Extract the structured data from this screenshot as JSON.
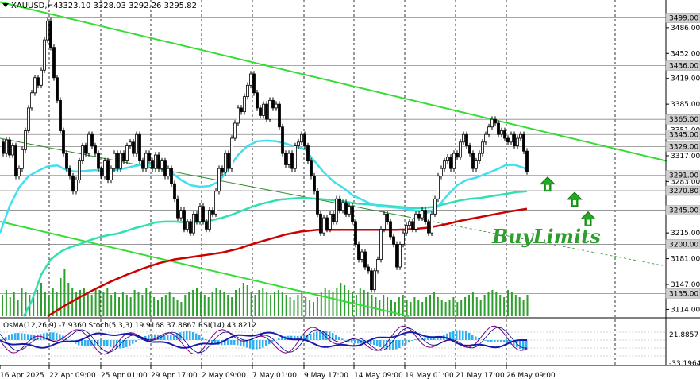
{
  "header": {
    "symbol": "XAUUSD,H4",
    "ohlc": "3323.10 3328.03 3292.26 3295.82"
  },
  "indicators_label": "OsMA(12,26,9) -7.9360  Stoch(5,3,3) 19.9168 37.8867  RSI(14) 43.8212",
  "annotation": "BuyLimits",
  "colors": {
    "candles": "#000000",
    "ma_fast": "#40e0f0",
    "ma_mid": "#30e0b0",
    "ma_slow": "#cc0000",
    "channel": "#33dd33",
    "arrow": "#22aa22",
    "osma": "#30b0f0",
    "stoch_main": "#800080",
    "stoch_signal": "#000080",
    "rsi": "#1a1aaa",
    "volume": "#2e9e2e"
  },
  "chart_data": {
    "type": "candlestick",
    "y_ticks": [
      "3486.00",
      "3452.00",
      "3419.00",
      "3385.00",
      "3351.00",
      "3317.00",
      "3283.00",
      "3215.00",
      "3181.00",
      "3147.00",
      "3114.00"
    ],
    "y_tick_values": [
      3486,
      3452,
      3419,
      3385,
      3351,
      3317,
      3283,
      3215,
      3181,
      3147,
      3114
    ],
    "price_badges": [
      "3499.00",
      "3436.00",
      "3365.00",
      "3345.00",
      "3329.00",
      "3291.00",
      "3270.80",
      "3245.00",
      "3200.00",
      "3135.00"
    ],
    "price_badge_values": [
      3499,
      3436,
      3365,
      3345,
      3329,
      3291,
      3270.8,
      3245,
      3200,
      3135
    ],
    "x_ticks": [
      "16 Apr 2025",
      "22 Apr 09:00",
      "25 Apr 01:00",
      "29 Apr 17:00",
      "2 May 09:00",
      "7 May 01:00",
      "9 May 17:00",
      "14 May 09:00",
      "19 May 01:00",
      "21 May 17:00",
      "26 May 09:00"
    ],
    "y_range": [
      3105,
      3510
    ],
    "price_path": [
      [
        0,
        3335
      ],
      [
        4,
        3320
      ],
      [
        8,
        3338
      ],
      [
        12,
        3318
      ],
      [
        16,
        3330
      ],
      [
        20,
        3290
      ],
      [
        24,
        3300
      ],
      [
        28,
        3325
      ],
      [
        32,
        3350
      ],
      [
        36,
        3380
      ],
      [
        40,
        3400
      ],
      [
        44,
        3420
      ],
      [
        48,
        3410
      ],
      [
        52,
        3430
      ],
      [
        56,
        3470
      ],
      [
        60,
        3495
      ],
      [
        64,
        3460
      ],
      [
        68,
        3420
      ],
      [
        72,
        3390
      ],
      [
        76,
        3350
      ],
      [
        80,
        3320
      ],
      [
        84,
        3300
      ],
      [
        88,
        3290
      ],
      [
        92,
        3270
      ],
      [
        96,
        3285
      ],
      [
        100,
        3310
      ],
      [
        104,
        3330
      ],
      [
        108,
        3320
      ],
      [
        112,
        3345
      ],
      [
        116,
        3330
      ],
      [
        120,
        3320
      ],
      [
        124,
        3300
      ],
      [
        128,
        3290
      ],
      [
        132,
        3310
      ],
      [
        136,
        3285
      ],
      [
        140,
        3300
      ],
      [
        144,
        3320
      ],
      [
        148,
        3300
      ],
      [
        152,
        3320
      ],
      [
        156,
        3310
      ],
      [
        160,
        3330
      ],
      [
        164,
        3335
      ],
      [
        168,
        3320
      ],
      [
        172,
        3345
      ],
      [
        176,
        3310
      ],
      [
        180,
        3300
      ],
      [
        184,
        3320
      ],
      [
        188,
        3310
      ],
      [
        192,
        3300
      ],
      [
        196,
        3318
      ],
      [
        200,
        3300
      ],
      [
        204,
        3310
      ],
      [
        208,
        3290
      ],
      [
        212,
        3300
      ],
      [
        216,
        3280
      ],
      [
        220,
        3260
      ],
      [
        224,
        3235
      ],
      [
        228,
        3245
      ],
      [
        232,
        3220
      ],
      [
        236,
        3230
      ],
      [
        240,
        3215
      ],
      [
        244,
        3240
      ],
      [
        248,
        3230
      ],
      [
        252,
        3250
      ],
      [
        256,
        3230
      ],
      [
        260,
        3220
      ],
      [
        264,
        3245
      ],
      [
        268,
        3240
      ],
      [
        272,
        3270
      ],
      [
        276,
        3300
      ],
      [
        280,
        3295
      ],
      [
        284,
        3320
      ],
      [
        288,
        3300
      ],
      [
        292,
        3340
      ],
      [
        296,
        3360
      ],
      [
        300,
        3380
      ],
      [
        304,
        3375
      ],
      [
        308,
        3395
      ],
      [
        312,
        3410
      ],
      [
        316,
        3425
      ],
      [
        320,
        3400
      ],
      [
        324,
        3380
      ],
      [
        328,
        3370
      ],
      [
        332,
        3385
      ],
      [
        336,
        3365
      ],
      [
        340,
        3390
      ],
      [
        344,
        3380
      ],
      [
        348,
        3385
      ],
      [
        352,
        3355
      ],
      [
        356,
        3320
      ],
      [
        360,
        3305
      ],
      [
        364,
        3320
      ],
      [
        368,
        3300
      ],
      [
        372,
        3330
      ],
      [
        376,
        3335
      ],
      [
        380,
        3345
      ],
      [
        384,
        3330
      ],
      [
        388,
        3310
      ],
      [
        392,
        3290
      ],
      [
        396,
        3270
      ],
      [
        400,
        3240
      ],
      [
        404,
        3215
      ],
      [
        408,
        3235
      ],
      [
        412,
        3220
      ],
      [
        416,
        3240
      ],
      [
        420,
        3230
      ],
      [
        424,
        3260
      ],
      [
        428,
        3245
      ],
      [
        432,
        3255
      ],
      [
        436,
        3240
      ],
      [
        440,
        3250
      ],
      [
        444,
        3230
      ],
      [
        448,
        3200
      ],
      [
        452,
        3180
      ],
      [
        456,
        3190
      ],
      [
        460,
        3170
      ],
      [
        464,
        3165
      ],
      [
        468,
        3140
      ],
      [
        472,
        3165
      ],
      [
        476,
        3180
      ],
      [
        480,
        3220
      ],
      [
        484,
        3240
      ],
      [
        488,
        3230
      ],
      [
        492,
        3210
      ],
      [
        496,
        3200
      ],
      [
        500,
        3170
      ],
      [
        504,
        3200
      ],
      [
        508,
        3215
      ],
      [
        512,
        3225
      ],
      [
        516,
        3230
      ],
      [
        520,
        3220
      ],
      [
        524,
        3240
      ],
      [
        528,
        3235
      ],
      [
        532,
        3245
      ],
      [
        536,
        3230
      ],
      [
        540,
        3215
      ],
      [
        544,
        3240
      ],
      [
        548,
        3260
      ],
      [
        552,
        3290
      ],
      [
        556,
        3300
      ],
      [
        560,
        3310
      ],
      [
        564,
        3315
      ],
      [
        568,
        3300
      ],
      [
        572,
        3320
      ],
      [
        576,
        3315
      ],
      [
        580,
        3335
      ],
      [
        584,
        3345
      ],
      [
        588,
        3330
      ],
      [
        592,
        3320
      ],
      [
        596,
        3300
      ],
      [
        600,
        3310
      ],
      [
        604,
        3320
      ],
      [
        608,
        3335
      ],
      [
        612,
        3345
      ],
      [
        616,
        3355
      ],
      [
        620,
        3365
      ],
      [
        624,
        3360
      ],
      [
        628,
        3345
      ],
      [
        632,
        3350
      ],
      [
        636,
        3340
      ],
      [
        640,
        3335
      ],
      [
        644,
        3345
      ],
      [
        648,
        3330
      ],
      [
        652,
        3340
      ],
      [
        656,
        3345
      ],
      [
        660,
        3323
      ],
      [
        664,
        3296
      ]
    ],
    "ma_fast": [
      [
        0,
        3215
      ],
      [
        12,
        3250
      ],
      [
        24,
        3275
      ],
      [
        36,
        3290
      ],
      [
        48,
        3297
      ],
      [
        60,
        3303
      ],
      [
        72,
        3304
      ],
      [
        84,
        3298
      ],
      [
        96,
        3296
      ],
      [
        108,
        3297
      ],
      [
        120,
        3298
      ],
      [
        132,
        3297
      ],
      [
        144,
        3298
      ],
      [
        156,
        3300
      ],
      [
        168,
        3303
      ],
      [
        180,
        3305
      ],
      [
        192,
        3304
      ],
      [
        204,
        3302
      ],
      [
        216,
        3295
      ],
      [
        228,
        3285
      ],
      [
        240,
        3278
      ],
      [
        252,
        3276
      ],
      [
        264,
        3277
      ],
      [
        276,
        3283
      ],
      [
        288,
        3300
      ],
      [
        300,
        3318
      ],
      [
        312,
        3330
      ],
      [
        324,
        3336
      ],
      [
        336,
        3337
      ],
      [
        348,
        3336
      ],
      [
        360,
        3333
      ],
      [
        372,
        3329
      ],
      [
        384,
        3326
      ],
      [
        396,
        3310
      ],
      [
        408,
        3295
      ],
      [
        420,
        3283
      ],
      [
        432,
        3275
      ],
      [
        444,
        3265
      ],
      [
        456,
        3259
      ],
      [
        468,
        3253
      ],
      [
        480,
        3250
      ],
      [
        492,
        3249
      ],
      [
        504,
        3248
      ],
      [
        516,
        3246
      ],
      [
        528,
        3244
      ],
      [
        540,
        3242
      ],
      [
        552,
        3250
      ],
      [
        564,
        3265
      ],
      [
        576,
        3278
      ],
      [
        588,
        3285
      ],
      [
        600,
        3288
      ],
      [
        612,
        3293
      ],
      [
        624,
        3298
      ],
      [
        636,
        3304
      ],
      [
        648,
        3305
      ],
      [
        660,
        3301
      ],
      [
        664,
        3298
      ]
    ],
    "ma_mid": [
      [
        30,
        3105
      ],
      [
        40,
        3125
      ],
      [
        52,
        3160
      ],
      [
        64,
        3180
      ],
      [
        76,
        3190
      ],
      [
        88,
        3196
      ],
      [
        100,
        3200
      ],
      [
        112,
        3205
      ],
      [
        124,
        3209
      ],
      [
        136,
        3212
      ],
      [
        148,
        3214
      ],
      [
        160,
        3218
      ],
      [
        172,
        3222
      ],
      [
        184,
        3225
      ],
      [
        196,
        3229
      ],
      [
        208,
        3230
      ],
      [
        220,
        3230
      ],
      [
        232,
        3229
      ],
      [
        244,
        3229
      ],
      [
        256,
        3230
      ],
      [
        268,
        3232
      ],
      [
        280,
        3235
      ],
      [
        292,
        3239
      ],
      [
        304,
        3244
      ],
      [
        316,
        3249
      ],
      [
        328,
        3253
      ],
      [
        340,
        3256
      ],
      [
        352,
        3259
      ],
      [
        364,
        3260
      ],
      [
        376,
        3261
      ],
      [
        388,
        3261
      ],
      [
        400,
        3260
      ],
      [
        412,
        3259
      ],
      [
        424,
        3258
      ],
      [
        436,
        3256
      ],
      [
        448,
        3254
      ],
      [
        460,
        3253
      ],
      [
        472,
        3252
      ],
      [
        484,
        3251
      ],
      [
        496,
        3250
      ],
      [
        508,
        3249
      ],
      [
        520,
        3248
      ],
      [
        532,
        3248
      ],
      [
        544,
        3249
      ],
      [
        556,
        3252
      ],
      [
        568,
        3255
      ],
      [
        580,
        3258
      ],
      [
        592,
        3260
      ],
      [
        604,
        3261
      ],
      [
        616,
        3263
      ],
      [
        628,
        3265
      ],
      [
        640,
        3267
      ],
      [
        652,
        3269
      ],
      [
        664,
        3270
      ]
    ],
    "ma_slow": [
      [
        60,
        3105
      ],
      [
        80,
        3118
      ],
      [
        100,
        3130
      ],
      [
        120,
        3141
      ],
      [
        140,
        3151
      ],
      [
        160,
        3160
      ],
      [
        180,
        3168
      ],
      [
        200,
        3175
      ],
      [
        220,
        3180
      ],
      [
        240,
        3183
      ],
      [
        260,
        3186
      ],
      [
        280,
        3189
      ],
      [
        300,
        3194
      ],
      [
        320,
        3201
      ],
      [
        340,
        3207
      ],
      [
        360,
        3213
      ],
      [
        380,
        3217
      ],
      [
        400,
        3219
      ],
      [
        420,
        3219
      ],
      [
        440,
        3219
      ],
      [
        460,
        3219
      ],
      [
        480,
        3219
      ],
      [
        500,
        3219
      ],
      [
        520,
        3220
      ],
      [
        540,
        3222
      ],
      [
        560,
        3226
      ],
      [
        580,
        3231
      ],
      [
        600,
        3235
      ],
      [
        620,
        3239
      ],
      [
        640,
        3243
      ],
      [
        664,
        3247
      ]
    ],
    "channel_upper": [
      [
        0,
        3520
      ],
      [
        840,
        3310
      ]
    ],
    "channel_lower": [
      [
        0,
        3230
      ],
      [
        515,
        3105
      ]
    ],
    "trendline_mid": [
      [
        0,
        3340
      ],
      [
        515,
        3236
      ]
    ],
    "trendline_mid_dashed": [
      [
        515,
        3236
      ],
      [
        835,
        3172
      ]
    ],
    "buy_arrows": [
      3291,
      3270.8,
      3245
    ],
    "volume_heights": [
      0.45,
      0.55,
      0.4,
      0.5,
      0.35,
      0.6,
      0.5,
      0.45,
      0.4,
      0.55,
      0.7,
      0.5,
      0.45,
      0.6,
      0.5,
      0.8,
      1.0,
      0.7,
      0.6,
      0.5,
      0.55,
      0.6,
      0.5,
      0.45,
      0.6,
      0.55,
      0.5,
      0.6,
      0.45,
      0.5,
      0.4,
      0.5,
      0.45,
      0.4,
      0.55,
      0.5,
      0.45,
      0.6,
      0.5,
      0.4,
      0.35,
      0.4,
      0.45,
      0.5,
      0.4,
      0.35,
      0.3,
      0.45,
      0.5,
      0.55,
      0.6,
      0.5,
      0.45,
      0.4,
      0.5,
      0.6,
      0.55,
      0.5,
      0.45,
      0.4,
      0.55,
      0.6,
      0.7,
      0.65,
      0.5,
      0.45,
      0.55,
      0.6,
      0.5,
      0.45,
      0.5,
      0.55,
      0.5,
      0.45,
      0.4,
      0.35,
      0.45,
      0.5,
      0.4,
      0.35,
      0.3,
      0.4,
      0.5,
      0.6,
      0.55,
      0.5,
      0.6,
      0.7,
      0.65,
      0.55,
      0.5,
      0.45,
      0.6,
      0.55,
      0.5,
      0.45,
      0.4,
      0.35,
      0.45,
      0.4,
      0.35,
      0.3,
      0.4,
      0.45,
      0.35,
      0.3,
      0.4,
      0.35,
      0.3,
      0.4,
      0.45,
      0.5,
      0.4,
      0.35,
      0.3,
      0.35,
      0.4,
      0.3,
      0.35,
      0.4,
      0.45,
      0.5,
      0.4,
      0.35,
      0.45,
      0.5,
      0.55,
      0.5,
      0.45,
      0.4,
      0.55,
      0.5,
      0.45,
      0.4,
      0.35,
      0.45
    ]
  }
}
